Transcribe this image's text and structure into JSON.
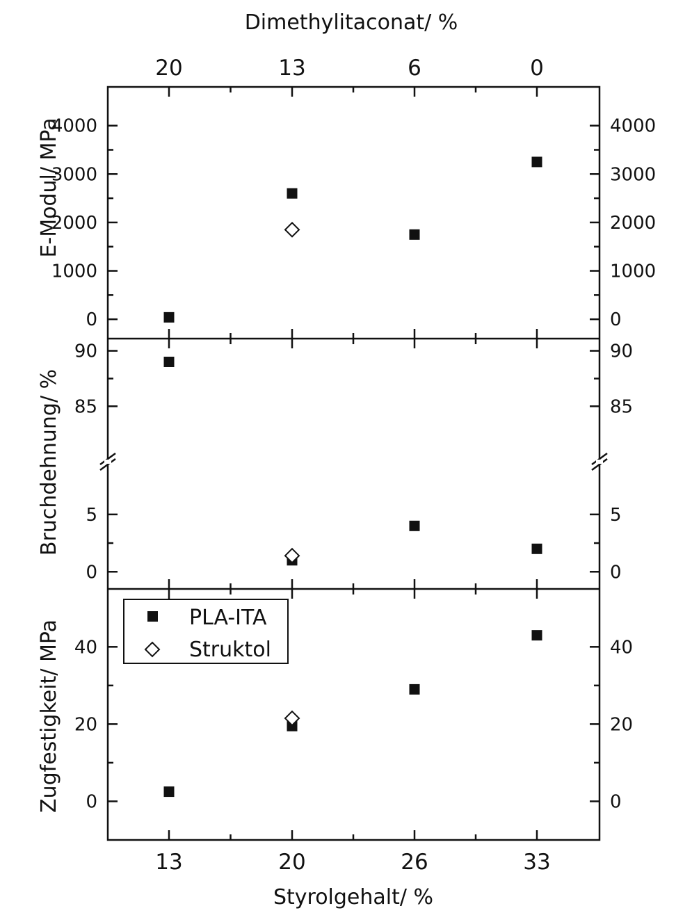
{
  "chart_data": {
    "type": "scatter",
    "x_axis_bottom": {
      "label": "Styrolgehalt/ %",
      "ticks": [
        "13",
        "20",
        "26",
        "33"
      ]
    },
    "x_axis_top": {
      "label": "Dimethylitaconat/ %",
      "ticks": [
        "20",
        "13",
        "6",
        "0"
      ]
    },
    "legend": {
      "placement": "upper-left of bottom panel",
      "entries": [
        {
          "name": "PLA-ITA",
          "marker": "filled-square",
          "color": "#111111"
        },
        {
          "name": "Struktol",
          "marker": "open-diamond",
          "color": "#111111"
        }
      ]
    },
    "panels": [
      {
        "id": "e-modul",
        "ylabel": "E-Modul/ MPa",
        "ylim": [
          -400,
          4800
        ],
        "yticks": [
          0,
          1000,
          2000,
          3000,
          4000
        ],
        "series": [
          {
            "name": "PLA-ITA",
            "values": [
              40,
              2600,
              1750,
              3250
            ]
          },
          {
            "name": "Struktol",
            "values": [
              null,
              1850,
              null,
              null
            ]
          }
        ]
      },
      {
        "id": "bruchdehnung",
        "ylabel": "Bruchdehnung/ %",
        "axis_break": true,
        "lower_ylim": [
          -1.5,
          9.6
        ],
        "upper_ylim": [
          80.0,
          91.1
        ],
        "yticks": [
          0,
          5,
          85,
          90
        ],
        "series": [
          {
            "name": "PLA-ITA",
            "values": [
              89,
              1,
              4,
              2
            ]
          },
          {
            "name": "Struktol",
            "values": [
              null,
              1.4,
              null,
              null
            ]
          }
        ]
      },
      {
        "id": "zugfestigkeit",
        "ylabel": "Zugfestigkeit/ MPa",
        "ylim": [
          -10,
          55
        ],
        "yticks": [
          0,
          20,
          40
        ],
        "series": [
          {
            "name": "PLA-ITA",
            "values": [
              2.5,
              19.5,
              29,
              43
            ]
          },
          {
            "name": "Struktol",
            "values": [
              null,
              21.5,
              null,
              null
            ]
          }
        ]
      }
    ]
  }
}
